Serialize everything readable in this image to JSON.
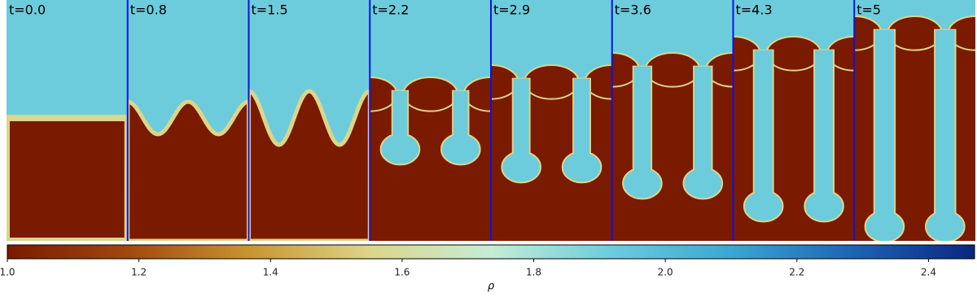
{
  "chart_data": {
    "type": "heatmap",
    "panels": [
      "t=0.0",
      "t=0.8",
      "t=1.5",
      "t=2.2",
      "t=2.9",
      "t=3.6",
      "t=4.3",
      "t=5"
    ],
    "colorbar": {
      "label": "ρ",
      "xlim": [
        1.0,
        2.47
      ],
      "xticks": [
        {
          "value": 1,
          "label": "1.0"
        },
        1.2,
        1.4,
        1.6,
        1.8,
        {
          "value": 2,
          "label": "2.0"
        },
        2.2,
        2.4
      ],
      "colors": [
        "#7a1a00",
        "#a0480f",
        "#c8952f",
        "#dcd58a",
        "#c6ecd6",
        "#6cccdc",
        "#3aa6d2",
        "#1e63b4",
        "#0b2680"
      ]
    },
    "separator_color": "#1010e0"
  }
}
